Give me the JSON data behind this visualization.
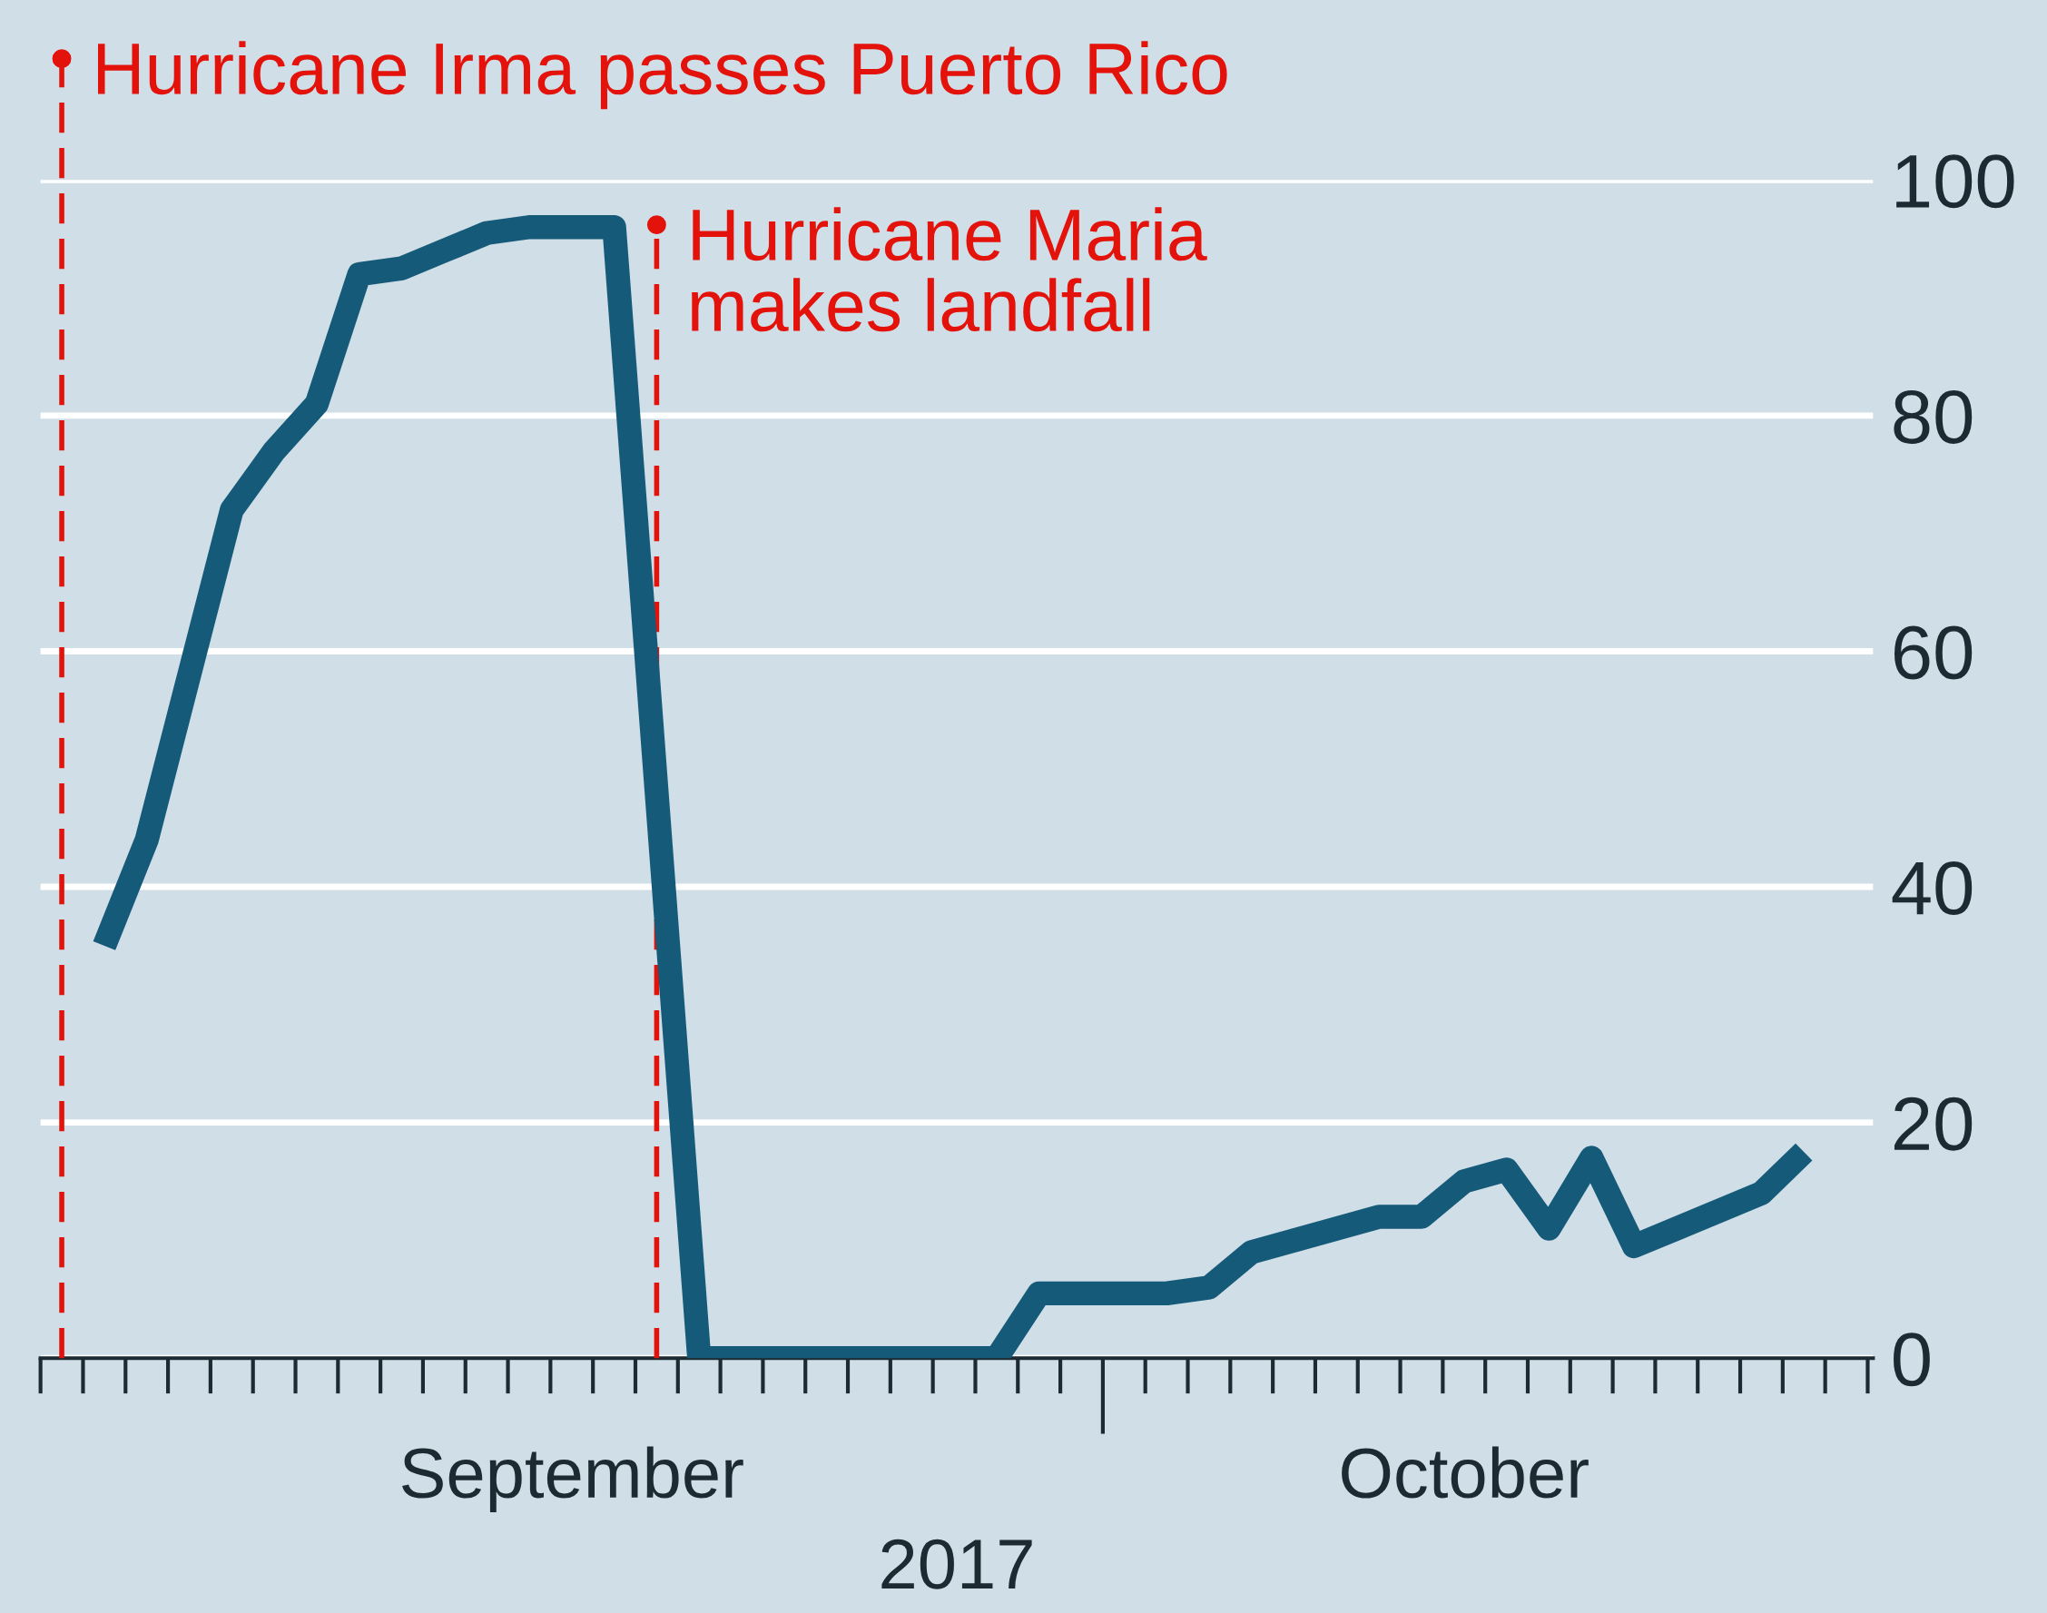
{
  "chart_data": {
    "type": "line",
    "xlabel": "2017",
    "x": [
      "2017-09-07T12:00",
      "2017-09-08T12:00",
      "2017-09-09T12:00",
      "2017-09-10T12:00",
      "2017-09-11T12:00",
      "2017-09-12T12:00",
      "2017-09-13T12:00",
      "2017-09-14T12:00",
      "2017-09-15T12:00",
      "2017-09-16T12:00",
      "2017-09-17T12:00",
      "2017-09-18T12:00",
      "2017-09-19T12:00",
      "2017-09-20T12:00",
      "2017-09-21T12:00",
      "2017-09-22T12:00",
      "2017-09-23T12:00",
      "2017-09-24T12:00",
      "2017-09-25T12:00",
      "2017-09-26T12:00",
      "2017-09-27T12:00",
      "2017-09-28T12:00",
      "2017-09-29T12:00",
      "2017-09-30T12:00",
      "2017-10-01T12:00",
      "2017-10-02T12:00",
      "2017-10-03T12:00",
      "2017-10-04T12:00",
      "2017-10-05T12:00",
      "2017-10-06T12:00",
      "2017-10-07T12:00",
      "2017-10-08T12:00",
      "2017-10-09T12:00",
      "2017-10-10T12:00",
      "2017-10-11T12:00",
      "2017-10-12T12:00",
      "2017-10-13T12:00",
      "2017-10-14T12:00",
      "2017-10-15T12:00",
      "2017-10-16T12:00",
      "2017-10-17T12:00"
    ],
    "series": [
      {
        "color": "#155a78",
        "values": [
          35,
          44,
          58,
          72,
          77,
          81,
          92,
          92.5,
          94,
          95.5,
          96,
          96,
          96,
          48,
          0,
          0,
          0,
          0,
          0,
          0,
          0,
          0,
          5.5,
          5.5,
          5.5,
          5.5,
          6,
          9,
          10,
          11,
          12,
          12,
          15,
          16,
          11,
          17,
          9.5,
          11,
          12.5,
          14,
          17.5
        ]
      }
    ],
    "xlim": [
      "2017-09-06",
      "2017-10-19T03:00"
    ],
    "xticks": [
      {
        "value": "2017-09-18T12:00",
        "label": "September"
      },
      {
        "value": "2017-10-09T12:00",
        "label": "October"
      }
    ],
    "ylim": [
      0,
      100
    ],
    "yticks": [
      0,
      20,
      40,
      60,
      80,
      100
    ],
    "grid": "y",
    "marker": "none",
    "line_style": "solid",
    "ref_lines": [
      {
        "axis": "x",
        "value": "2017-09-06T12:00",
        "label": "Hurricane Irma passes Puerto Rico",
        "color": "#e3120b",
        "line_style": "dashed"
      },
      {
        "axis": "x",
        "value": "2017-09-20T12:00",
        "label": "Hurricane Maria\nmakes landfall",
        "color": "#e3120b",
        "line_style": "dashed"
      }
    ]
  }
}
